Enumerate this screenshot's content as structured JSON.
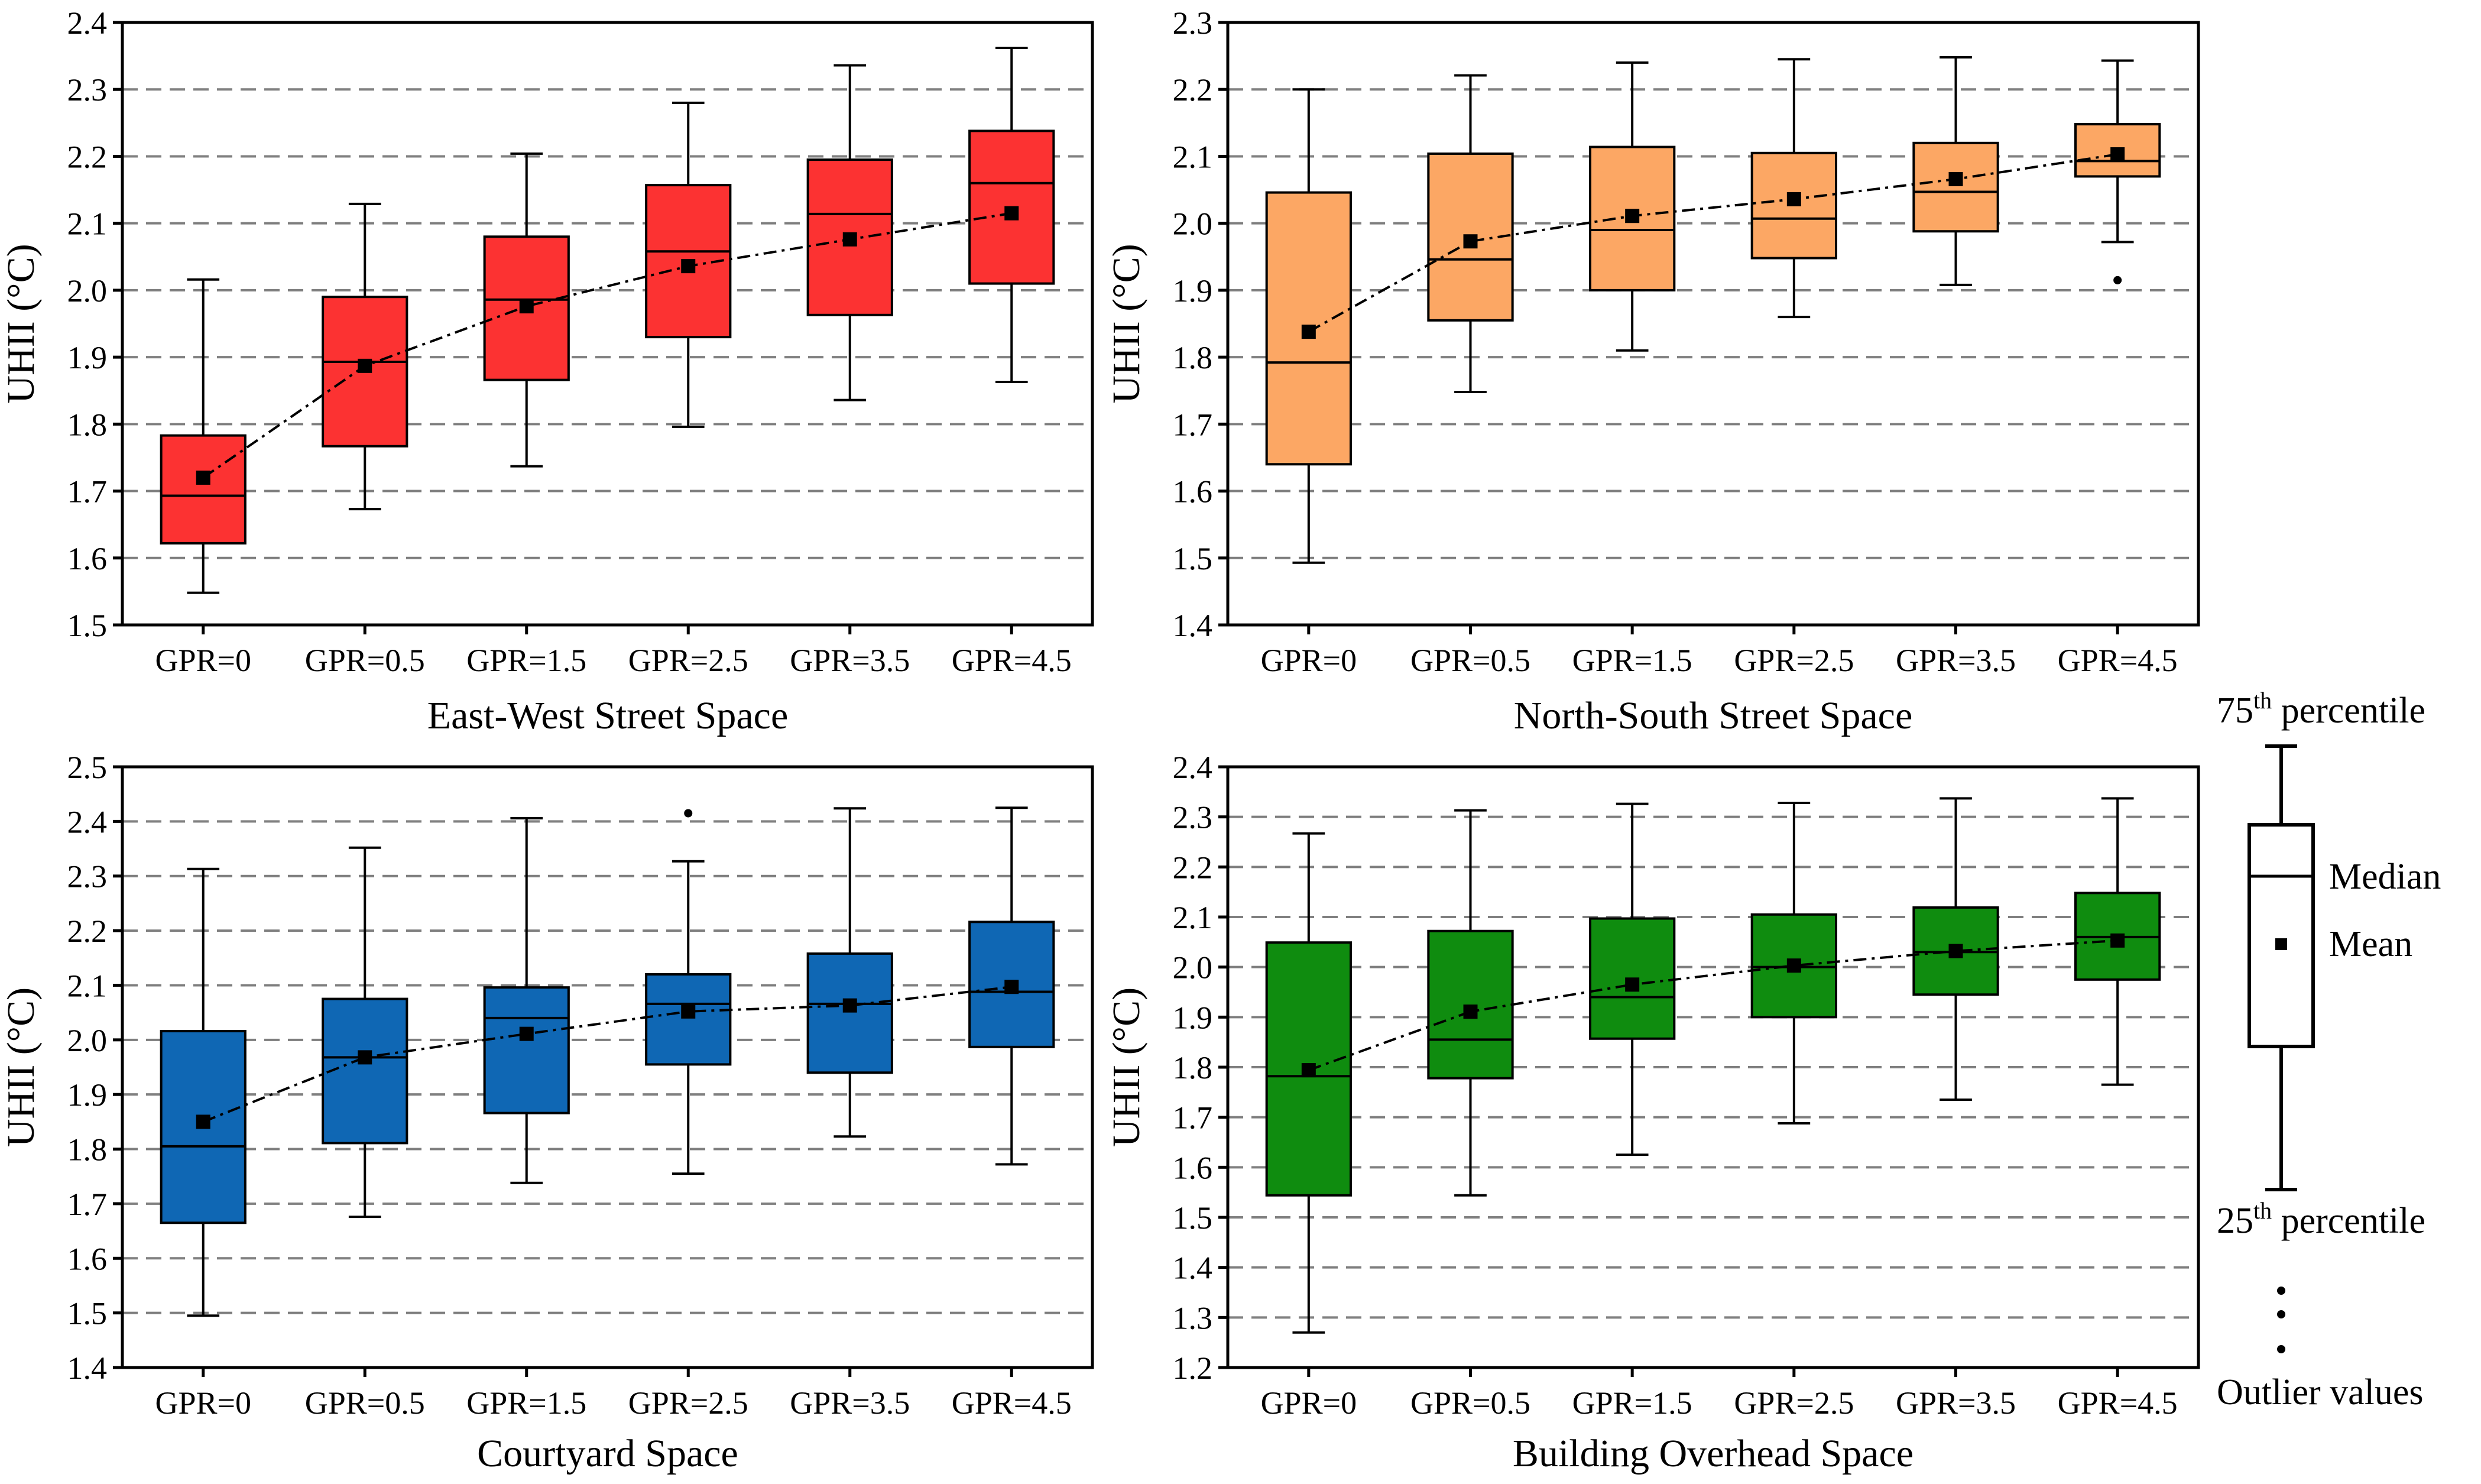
{
  "chart_data": [
    {
      "type": "box",
      "title": "East-West Street Space",
      "ylabel": "UHII (°C)",
      "ylim": [
        1.5,
        2.4
      ],
      "ytick_step": 0.1,
      "grid": "dashed-horizontal",
      "color": "#fc3232",
      "categories": [
        "GPR=0",
        "GPR=0.5",
        "GPR=1.5",
        "GPR=2.5",
        "GPR=3.5",
        "GPR=4.5"
      ],
      "boxes": [
        {
          "min": 1.548,
          "q1": 1.622,
          "median": 1.693,
          "q3": 1.783,
          "max": 2.016,
          "mean": 1.72
        },
        {
          "min": 1.673,
          "q1": 1.767,
          "median": 1.893,
          "q3": 1.99,
          "max": 2.129,
          "mean": 1.887
        },
        {
          "min": 1.737,
          "q1": 1.866,
          "median": 1.986,
          "q3": 2.08,
          "max": 2.204,
          "mean": 1.976
        },
        {
          "min": 1.796,
          "q1": 1.93,
          "median": 2.058,
          "q3": 2.157,
          "max": 2.28,
          "mean": 2.036
        },
        {
          "min": 1.836,
          "q1": 1.963,
          "median": 2.114,
          "q3": 2.195,
          "max": 2.336,
          "mean": 2.076
        },
        {
          "min": 1.863,
          "q1": 2.01,
          "median": 2.16,
          "q3": 2.238,
          "max": 2.362,
          "mean": 2.115
        }
      ],
      "outliers": []
    },
    {
      "type": "box",
      "title": "North-South Street Space",
      "ylabel": "UHII (°C)",
      "ylim": [
        1.4,
        2.3
      ],
      "ytick_step": 0.1,
      "grid": "dashed-horizontal",
      "color": "#fca764",
      "categories": [
        "GPR=0",
        "GPR=0.5",
        "GPR=1.5",
        "GPR=2.5",
        "GPR=3.5",
        "GPR=4.5"
      ],
      "boxes": [
        {
          "min": 1.493,
          "q1": 1.64,
          "median": 1.792,
          "q3": 2.046,
          "max": 2.2,
          "mean": 1.838
        },
        {
          "min": 1.748,
          "q1": 1.855,
          "median": 1.946,
          "q3": 2.104,
          "max": 2.221,
          "mean": 1.973
        },
        {
          "min": 1.81,
          "q1": 1.9,
          "median": 1.99,
          "q3": 2.114,
          "max": 2.24,
          "mean": 2.011
        },
        {
          "min": 1.86,
          "q1": 1.948,
          "median": 2.007,
          "q3": 2.105,
          "max": 2.245,
          "mean": 2.036
        },
        {
          "min": 1.908,
          "q1": 1.988,
          "median": 2.047,
          "q3": 2.12,
          "max": 2.248,
          "mean": 2.066
        },
        {
          "min": 1.972,
          "q1": 2.07,
          "median": 2.093,
          "q3": 2.148,
          "max": 2.243,
          "mean": 2.103
        }
      ],
      "outliers": [
        {
          "category": "GPR=4.5",
          "value": 1.915
        }
      ]
    },
    {
      "type": "box",
      "title": "Courtyard Space",
      "ylabel": "UHII (°C)",
      "ylim": [
        1.4,
        2.5
      ],
      "ytick_step": 0.1,
      "grid": "dashed-horizontal",
      "color": "#0f67b4",
      "categories": [
        "GPR=0",
        "GPR=0.5",
        "GPR=1.5",
        "GPR=2.5",
        "GPR=3.5",
        "GPR=4.5"
      ],
      "boxes": [
        {
          "min": 1.495,
          "q1": 1.665,
          "median": 1.805,
          "q3": 2.016,
          "max": 2.313,
          "mean": 1.85
        },
        {
          "min": 1.676,
          "q1": 1.811,
          "median": 1.968,
          "q3": 2.075,
          "max": 2.352,
          "mean": 1.968
        },
        {
          "min": 1.738,
          "q1": 1.866,
          "median": 2.04,
          "q3": 2.096,
          "max": 2.406,
          "mean": 2.011
        },
        {
          "min": 1.755,
          "q1": 1.955,
          "median": 2.066,
          "q3": 2.12,
          "max": 2.327,
          "mean": 2.052
        },
        {
          "min": 1.823,
          "q1": 1.94,
          "median": 2.066,
          "q3": 2.158,
          "max": 2.424,
          "mean": 2.063
        },
        {
          "min": 1.772,
          "q1": 1.987,
          "median": 2.088,
          "q3": 2.216,
          "max": 2.425,
          "mean": 2.097
        }
      ],
      "outliers": [
        {
          "category": "GPR=2.5",
          "value": 2.415
        }
      ]
    },
    {
      "type": "box",
      "title": "Building Overhead Space",
      "ylabel": "UHII (°C)",
      "ylim": [
        1.2,
        2.4
      ],
      "ytick_step": 0.1,
      "grid": "dashed-horizontal",
      "color": "#0f8c0f",
      "categories": [
        "GPR=0",
        "GPR=0.5",
        "GPR=1.5",
        "GPR=2.5",
        "GPR=3.5",
        "GPR=4.5"
      ],
      "boxes": [
        {
          "min": 1.27,
          "q1": 1.544,
          "median": 1.782,
          "q3": 2.049,
          "max": 2.267,
          "mean": 1.794
        },
        {
          "min": 1.544,
          "q1": 1.778,
          "median": 1.855,
          "q3": 2.072,
          "max": 2.313,
          "mean": 1.911
        },
        {
          "min": 1.625,
          "q1": 1.857,
          "median": 1.94,
          "q3": 2.097,
          "max": 2.326,
          "mean": 1.965
        },
        {
          "min": 1.688,
          "q1": 1.9,
          "median": 2.0,
          "q3": 2.105,
          "max": 2.328,
          "mean": 2.003
        },
        {
          "min": 1.735,
          "q1": 1.945,
          "median": 2.03,
          "q3": 2.119,
          "max": 2.337,
          "mean": 2.032
        },
        {
          "min": 1.765,
          "q1": 1.975,
          "median": 2.06,
          "q3": 2.148,
          "max": 2.337,
          "mean": 2.053
        }
      ],
      "outliers": []
    }
  ],
  "legend": {
    "q75_main": "75",
    "q75_sup": "th",
    "q75_rest": " percentile",
    "median": "Median",
    "mean": "Mean",
    "q25_main": "25",
    "q25_sup": "th",
    "q25_rest": " percentile",
    "outlier": "Outlier values"
  }
}
